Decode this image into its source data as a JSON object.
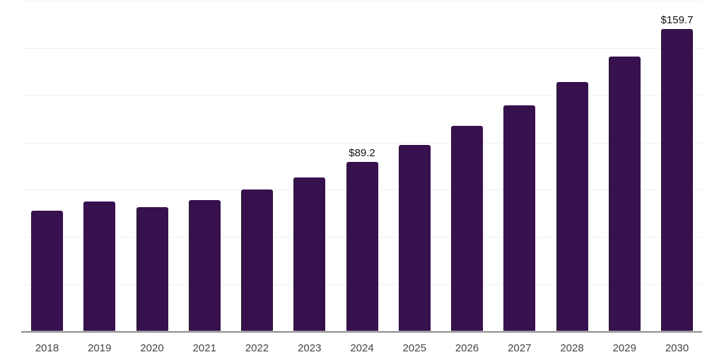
{
  "chart_data": {
    "type": "bar",
    "title": "",
    "xlabel": "",
    "ylabel": "",
    "categories": [
      "2018",
      "2019",
      "2020",
      "2021",
      "2022",
      "2023",
      "2024",
      "2025",
      "2026",
      "2027",
      "2028",
      "2029",
      "2030"
    ],
    "values": [
      63.4,
      68.3,
      65.3,
      69.1,
      74.6,
      81.3,
      89.2,
      98.3,
      108.3,
      119.4,
      131.6,
      145.1,
      159.7
    ],
    "data_labels": [
      "",
      "",
      "",
      "",
      "",
      "",
      "$89.2",
      "",
      "",
      "",
      "",
      "",
      "$159.7"
    ],
    "ylim": [
      0,
      175
    ],
    "gridline_step": 25,
    "grid": "horizontal",
    "legend_position": "none",
    "colors": {
      "bar": "#37104E",
      "gridline": "#f1f1f2",
      "axis_line": "#262626",
      "x_label_text": "#454545",
      "data_label_text": "#111111",
      "background": "#ffffff"
    }
  }
}
